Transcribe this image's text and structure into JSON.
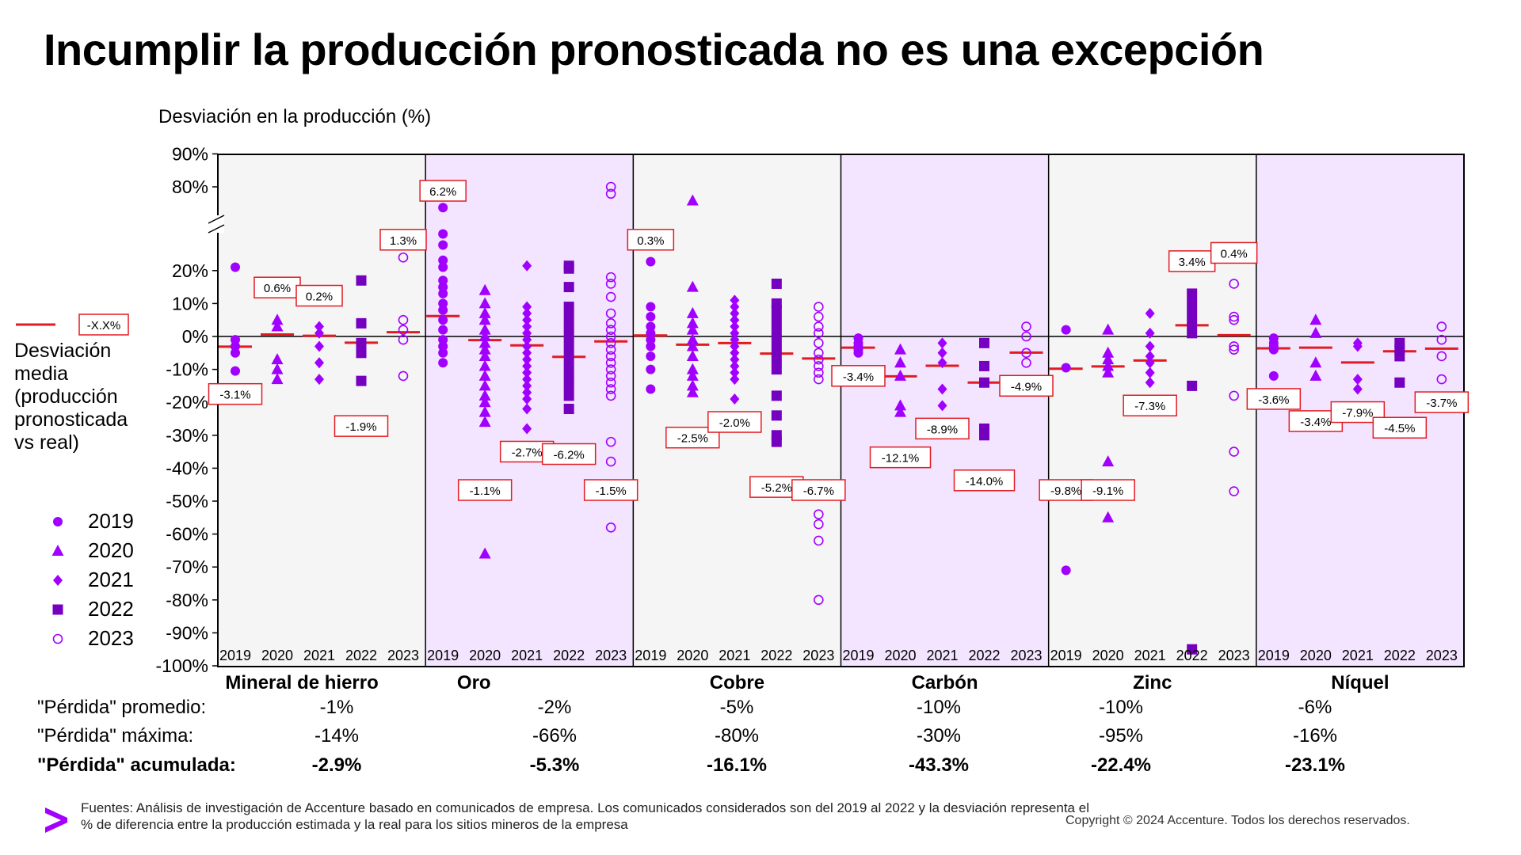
{
  "title": "Incumplir la producción pronosticada no es una excepción",
  "colors": {
    "accent": "#A100FF",
    "marker_dark": "#7500C0",
    "shade": "#F3E5FF",
    "panel": "#F5F5F5",
    "mean_line": "#E11B22",
    "label_border": "#E11B22"
  },
  "legend": {
    "mean_symbol_label": "-X.X%",
    "mean_description": "Desviación media (producción pronosticada vs real)",
    "years": [
      {
        "year": "2019",
        "marker": "circle"
      },
      {
        "year": "2020",
        "marker": "triangle"
      },
      {
        "year": "2021",
        "marker": "diamond"
      },
      {
        "year": "2022",
        "marker": "square"
      },
      {
        "year": "2023",
        "marker": "open-circle"
      }
    ]
  },
  "chart_data": {
    "type": "scatter",
    "ylabel": "Desviación en la producción (%)",
    "ylim": [
      -100,
      90
    ],
    "axis_break": [
      20,
      80
    ],
    "yticks": [
      "90%",
      "80%",
      "20%",
      "10%",
      "0%",
      "-10%",
      "-20%",
      "-30%",
      "-40%",
      "-50%",
      "-60%",
      "-70%",
      "-80%",
      "-90%",
      "-100%"
    ],
    "year_labels": [
      "2019",
      "2020",
      "2021",
      "2022",
      "2023"
    ],
    "grid": false,
    "legend_position": "left",
    "groups": [
      {
        "name": "Mineral de hierro",
        "shaded": false,
        "years": [
          {
            "year": "2019",
            "points": [
              22,
              -1,
              -3,
              -5,
              -10.5
            ],
            "mean": -3.1,
            "label": "-3.1%"
          },
          {
            "year": "2020",
            "points": [
              5,
              3,
              -7,
              -10,
              -13
            ],
            "mean": 0.6,
            "label": "0.6%"
          },
          {
            "year": "2021",
            "points": [
              3,
              1,
              -3,
              -8,
              -13
            ],
            "mean": 0.2,
            "label": "0.2%"
          },
          {
            "year": "2022",
            "points": [
              17,
              4,
              -2,
              -5,
              -13.5
            ],
            "mean": -1.9,
            "label": "-1.9%"
          },
          {
            "year": "2023",
            "points": [
              29,
              5,
              2,
              -1,
              -12
            ],
            "mean": 1.3,
            "label": "1.3%"
          }
        ]
      },
      {
        "name": "Oro",
        "shaded": true,
        "years": [
          {
            "year": "2019",
            "points": [
              65,
              46,
              38,
              27,
              22,
              17,
              15,
              13,
              10,
              8,
              5,
              2,
              -1,
              -3,
              -5,
              -8
            ],
            "mean": 6.2,
            "label": "6.2%"
          },
          {
            "year": "2020",
            "points": [
              14,
              10,
              7,
              5,
              2,
              0,
              -2,
              -4,
              -6,
              -9,
              -12,
              -15,
              -18,
              -20,
              -23,
              -26,
              -66
            ],
            "mean": -1.1,
            "label": "-1.1%"
          },
          {
            "year": "2021",
            "points": [
              23,
              9,
              7,
              5,
              3,
              1,
              -1,
              -3,
              -5,
              -7,
              -9,
              -11,
              -13,
              -15,
              -17,
              -19,
              -22,
              -28
            ],
            "mean": -2.7,
            "label": "-2.7%"
          },
          {
            "year": "2022",
            "points": [
              23,
              21,
              15,
              9,
              6,
              3,
              0,
              -3,
              -6,
              -9,
              -12,
              -15,
              -18,
              -22
            ],
            "mean": -6.2,
            "label": "-6.2%"
          },
          {
            "year": "2023",
            "points": [
              80,
              75,
              18,
              16,
              12,
              7,
              4,
              2,
              0,
              -2,
              -4,
              -6,
              -8,
              -10,
              -12,
              -14,
              -16,
              -18,
              -32,
              -38,
              -58
            ],
            "mean": -1.5,
            "label": "-1.5%"
          }
        ]
      },
      {
        "name": "Cobre",
        "shaded": false,
        "years": [
          {
            "year": "2019",
            "points": [
              26,
              9,
              6,
              3,
              1,
              -1,
              -3,
              -6,
              -10,
              -16
            ],
            "mean": 0.3,
            "label": "0.3%"
          },
          {
            "year": "2020",
            "points": [
              70,
              15,
              7,
              4,
              2,
              -1,
              -3,
              -6,
              -10,
              -12,
              -15,
              -17
            ],
            "mean": -2.5,
            "label": "-2.5%"
          },
          {
            "year": "2021",
            "points": [
              11,
              9,
              7,
              5,
              3,
              1,
              -1,
              -3,
              -5,
              -7,
              -9,
              -11,
              -13,
              -19
            ],
            "mean": -2.0,
            "label": "-2.0%"
          },
          {
            "year": "2022",
            "points": [
              16,
              10,
              8,
              5,
              2,
              -1,
              -4,
              -7,
              -10,
              -18,
              -24,
              -30,
              -32
            ],
            "mean": -5.2,
            "label": "-5.2%"
          },
          {
            "year": "2023",
            "points": [
              9,
              6,
              3,
              1,
              -2,
              -5,
              -7,
              -9,
              -11,
              -13,
              -54,
              -57,
              -62,
              -80
            ],
            "mean": -6.7,
            "label": "-6.7%"
          }
        ]
      },
      {
        "name": "Carbón",
        "shaded": true,
        "years": [
          {
            "year": "2019",
            "points": [
              -0.5,
              -2,
              -3,
              -4,
              -5
            ],
            "mean": -3.4,
            "label": "-3.4%"
          },
          {
            "year": "2020",
            "points": [
              -4,
              -8,
              -12,
              -21,
              -23
            ],
            "mean": -12.1,
            "label": "-12.1%"
          },
          {
            "year": "2021",
            "points": [
              -2,
              -5,
              -8,
              -16,
              -21
            ],
            "mean": -8.9,
            "label": "-8.9%"
          },
          {
            "year": "2022",
            "points": [
              -2,
              -9,
              -14,
              -28,
              -30
            ],
            "mean": -14.0,
            "label": "-14.0%"
          },
          {
            "year": "2023",
            "points": [
              3,
              0,
              -5,
              -8
            ],
            "mean": -4.9,
            "label": "-4.9%"
          }
        ]
      },
      {
        "name": "Zinc",
        "shaded": false,
        "years": [
          {
            "year": "2019",
            "points": [
              2,
              -9.5,
              -71
            ],
            "mean": -9.8,
            "label": "-9.8%"
          },
          {
            "year": "2020",
            "points": [
              2,
              -5,
              -7,
              -9,
              -11,
              -38,
              -55
            ],
            "mean": -9.1,
            "label": "-9.1%"
          },
          {
            "year": "2021",
            "points": [
              7,
              1,
              -3,
              -6,
              -8,
              -11,
              -14
            ],
            "mean": -7.3,
            "label": "-7.3%"
          },
          {
            "year": "2022",
            "points": [
              13,
              10,
              7,
              4,
              1,
              -15,
              -95
            ],
            "mean": 3.4,
            "label": "3.4%"
          },
          {
            "year": "2023",
            "points": [
              16,
              6,
              5,
              -3,
              -4,
              -18,
              -35,
              -47
            ],
            "mean": 0.4,
            "label": "0.4%"
          }
        ]
      },
      {
        "name": "Níquel",
        "shaded": true,
        "years": [
          {
            "year": "2019",
            "points": [
              -0.5,
              -2,
              -3,
              -4,
              -12
            ],
            "mean": -3.6,
            "label": "-3.6%"
          },
          {
            "year": "2020",
            "points": [
              5,
              1,
              -8,
              -12
            ],
            "mean": -3.4,
            "label": "-3.4%"
          },
          {
            "year": "2021",
            "points": [
              -2,
              -3,
              -13,
              -16
            ],
            "mean": -7.9,
            "label": "-7.9%"
          },
          {
            "year": "2022",
            "points": [
              -2,
              -4,
              -6,
              -14
            ],
            "mean": -4.5,
            "label": "-4.5%"
          },
          {
            "year": "2023",
            "points": [
              3,
              -1,
              -6,
              -13
            ],
            "mean": -3.7,
            "label": "-3.7%"
          }
        ]
      }
    ]
  },
  "stats": {
    "labels": {
      "avg": "\"Pérdida\" promedio:",
      "max": "\"Pérdida\" máxima:",
      "acc": "\"Pérdida\" acumulada:"
    },
    "avg": [
      "-1%",
      "-2%",
      "-5%",
      "-10%",
      "-10%",
      "-6%"
    ],
    "max": [
      "-14%",
      "-66%",
      "-80%",
      "-30%",
      "-95%",
      "-16%"
    ],
    "acc": [
      "-2.9%",
      "-5.3%",
      "-16.1%",
      "-43.3%",
      "-22.4%",
      "-23.1%"
    ]
  },
  "footer": {
    "source": "Fuentes: Análisis de investigación de Accenture basado en comunicados de empresa.  Los comunicados considerados son del 2019 al 2022 y la desviación representa el % de diferencia entre la producción estimada y la real para los sitios mineros de la empresa",
    "copyright": "Copyright © 2024 Accenture. Todos los derechos reservados."
  }
}
